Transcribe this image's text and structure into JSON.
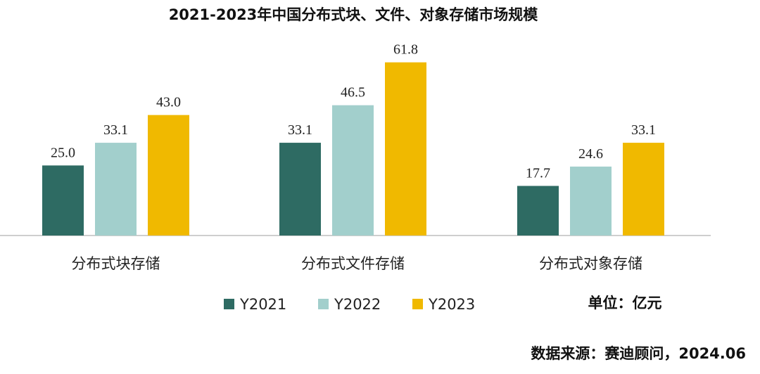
{
  "chart_data": {
    "type": "bar",
    "title": "2021-2023年中国分布式块、文件、对象存储市场规模",
    "categories": [
      "分布式块存储",
      "分布式文件存储",
      "分布式对象存储"
    ],
    "series": [
      {
        "name": "Y2021",
        "color": "#2e6b63",
        "values": [
          25.0,
          33.1,
          17.7
        ]
      },
      {
        "name": "Y2022",
        "color": "#a2cfcc",
        "values": [
          33.1,
          46.5,
          24.6
        ]
      },
      {
        "name": "Y2023",
        "color": "#f0b900",
        "values": [
          43.0,
          61.8,
          33.1
        ]
      }
    ],
    "ylim": [
      0,
      70
    ],
    "grid": false,
    "legend_position": "bottom",
    "unit_note": "单位：亿元"
  },
  "source_note": "数据来源：赛迪顾问，2024.06"
}
